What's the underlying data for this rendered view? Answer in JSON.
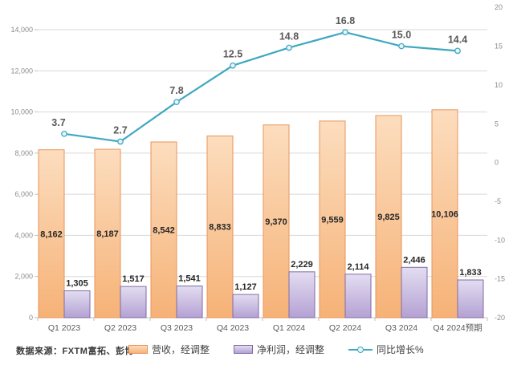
{
  "source_note": "数据来源：FXTM富拓、彭博",
  "legend": {
    "items": [
      {
        "label": "营收，经调整",
        "type": "bar",
        "color": "#F9C491",
        "border": "#E8945A"
      },
      {
        "label": "净利润，经调整",
        "type": "bar",
        "color": "#CCC0E4",
        "border": "#7F6BA5"
      },
      {
        "label": "同比增长%",
        "type": "line",
        "color": "#3FA8C0"
      }
    ]
  },
  "chart_data": {
    "type": "combo",
    "categories": [
      "Q1 2023",
      "Q2 2023",
      "Q3 2023",
      "Q4 2023",
      "Q1 2024",
      "Q2 2024",
      "Q3 2024",
      "Q4 2024预期"
    ],
    "series": [
      {
        "name": "营收，经调整",
        "type": "bar",
        "axis": "left",
        "values": [
          8162,
          8187,
          8542,
          8833,
          9370,
          9559,
          9825,
          10106
        ],
        "fill_top": "#FCDDBE",
        "fill_bottom": "#F6B277",
        "border": "#E8945A",
        "label_position": "inside-center"
      },
      {
        "name": "净利润，经调整",
        "type": "bar",
        "axis": "left",
        "values": [
          1305,
          1517,
          1541,
          1127,
          2229,
          2114,
          2446,
          1833
        ],
        "fill_top": "#E3DDF1",
        "fill_bottom": "#B4A1D3",
        "border": "#7F6BA5",
        "label_position": "outside-top"
      },
      {
        "name": "同比增长%",
        "type": "line",
        "axis": "right",
        "values": [
          3.7,
          2.7,
          7.8,
          12.5,
          14.8,
          16.8,
          15.0,
          14.4
        ],
        "color": "#3FA8C0",
        "marker_fill": "#E9F4F8",
        "label_position": "above"
      }
    ],
    "left_axis": {
      "min": 0,
      "max": 14000,
      "step": 2000,
      "tick_labels": [
        "0",
        "2,000",
        "4,000",
        "6,000",
        "8,000",
        "10,000",
        "12,000",
        "14,000"
      ]
    },
    "right_axis": {
      "min": -20,
      "max": 20,
      "step": 5,
      "tick_labels": [
        "-20",
        "-15",
        "-10",
        "-5",
        "0",
        "5",
        "10",
        "15",
        "20"
      ]
    },
    "grid": true,
    "legend_position": "bottom",
    "title": "",
    "colors": {
      "grid": "#D9D9D9",
      "axis": "#BFBFBF",
      "axis_text": "#8C8C8C",
      "x_text": "#595959",
      "bar_label": "#262626",
      "line_label": "#595959"
    }
  }
}
